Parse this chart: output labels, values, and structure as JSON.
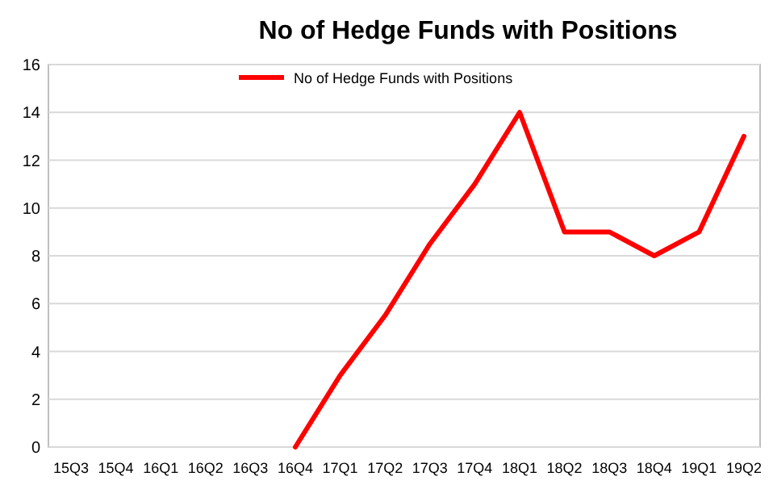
{
  "chart_data": {
    "type": "line",
    "title": "No of Hedge Funds with Positions",
    "categories": [
      "15Q3",
      "15Q4",
      "16Q1",
      "16Q2",
      "16Q3",
      "16Q4",
      "17Q1",
      "17Q2",
      "17Q3",
      "17Q4",
      "18Q1",
      "18Q2",
      "18Q3",
      "18Q4",
      "19Q1",
      "19Q2"
    ],
    "series": [
      {
        "name": "No of Hedge Funds with Positions",
        "color": "#ff0000",
        "values": [
          null,
          null,
          null,
          null,
          null,
          0,
          3,
          5.5,
          8.5,
          11,
          14,
          9,
          9,
          8,
          9,
          13
        ]
      }
    ],
    "ylim": [
      0,
      16
    ],
    "yticks": [
      0,
      2,
      4,
      6,
      8,
      10,
      12,
      14,
      16
    ],
    "grid": "y",
    "legend": "top",
    "line_style": "solid"
  }
}
